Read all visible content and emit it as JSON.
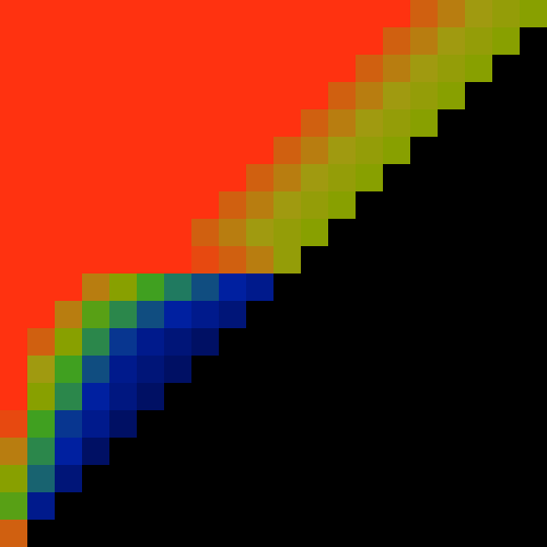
{
  "chart_data": {
    "type": "heatmap",
    "x": [
      15,
      45,
      75,
      105,
      135,
      165,
      195,
      225,
      255,
      285,
      315,
      345,
      375,
      405,
      435,
      465,
      495,
      525,
      555,
      585
    ],
    "y": [
      15,
      45,
      75,
      105,
      135,
      165,
      195,
      225,
      255,
      285,
      315,
      345,
      375,
      405,
      435,
      465,
      495,
      525,
      555,
      585
    ],
    "cells": [
      [
        0.9,
        null,
        null,
        null,
        null,
        null,
        null,
        null,
        null,
        null,
        null,
        null,
        null,
        null,
        null,
        null,
        null,
        null,
        null,
        null
      ],
      [
        0.6,
        0.15,
        null,
        null,
        null,
        null,
        null,
        null,
        null,
        null,
        null,
        null,
        null,
        null,
        null,
        null,
        null,
        null,
        null,
        null
      ],
      [
        0.7,
        0.35,
        0.1,
        null,
        null,
        null,
        null,
        null,
        null,
        null,
        null,
        null,
        null,
        null,
        null,
        null,
        null,
        null,
        null,
        null
      ],
      [
        0.85,
        0.45,
        0.2,
        0.05,
        null,
        null,
        null,
        null,
        null,
        null,
        null,
        null,
        null,
        null,
        null,
        null,
        null,
        null,
        null,
        null
      ],
      [
        0.95,
        0.55,
        0.25,
        0.15,
        0.05,
        null,
        null,
        null,
        null,
        null,
        null,
        null,
        null,
        null,
        null,
        null,
        null,
        null,
        null,
        null
      ],
      [
        1,
        0.7,
        0.45,
        0.2,
        0.12,
        0.05,
        null,
        null,
        null,
        null,
        null,
        null,
        null,
        null,
        null,
        null,
        null,
        null,
        null,
        null
      ],
      [
        1,
        0.8,
        0.55,
        0.3,
        0.15,
        0.1,
        0.05,
        null,
        null,
        null,
        null,
        null,
        null,
        null,
        null,
        null,
        null,
        null,
        null,
        null
      ],
      [
        1,
        0.9,
        0.7,
        0.45,
        0.25,
        0.15,
        0.1,
        0.05,
        null,
        null,
        null,
        null,
        null,
        null,
        null,
        null,
        null,
        null,
        null,
        null
      ],
      [
        1,
        1,
        0.85,
        0.6,
        0.45,
        0.3,
        0.2,
        0.15,
        0.1,
        null,
        null,
        null,
        null,
        null,
        null,
        null,
        null,
        null,
        null,
        null
      ],
      [
        1,
        1,
        1,
        0.85,
        0.7,
        0.55,
        0.4,
        0.3,
        0.2,
        0.15,
        null,
        null,
        null,
        null,
        null,
        null,
        null,
        null,
        null,
        null
      ],
      [
        1,
        1,
        1,
        1,
        1,
        1,
        1,
        0.95,
        0.9,
        0.85,
        0.75,
        null,
        null,
        null,
        null,
        null,
        null,
        null,
        null,
        null
      ],
      [
        1,
        1,
        1,
        1,
        1,
        1,
        1,
        0.9,
        0.85,
        0.8,
        0.75,
        0.7,
        null,
        null,
        null,
        null,
        null,
        null,
        null,
        null
      ],
      [
        1,
        1,
        1,
        1,
        1,
        1,
        1,
        1,
        0.9,
        0.85,
        0.8,
        0.75,
        0.7,
        null,
        null,
        null,
        null,
        null,
        null,
        null
      ],
      [
        1,
        1,
        1,
        1,
        1,
        1,
        1,
        1,
        1,
        0.9,
        0.85,
        0.8,
        0.75,
        0.7,
        null,
        null,
        null,
        null,
        null,
        null
      ],
      [
        1,
        1,
        1,
        1,
        1,
        1,
        1,
        1,
        1,
        1,
        0.9,
        0.85,
        0.8,
        0.75,
        0.7,
        null,
        null,
        null,
        null,
        null
      ],
      [
        1,
        1,
        1,
        1,
        1,
        1,
        1,
        1,
        1,
        1,
        1,
        0.9,
        0.85,
        0.8,
        0.75,
        0.7,
        null,
        null,
        null,
        null
      ],
      [
        1,
        1,
        1,
        1,
        1,
        1,
        1,
        1,
        1,
        1,
        1,
        1,
        0.9,
        0.85,
        0.8,
        0.75,
        0.7,
        null,
        null,
        null
      ],
      [
        1,
        1,
        1,
        1,
        1,
        1,
        1,
        1,
        1,
        1,
        1,
        1,
        1,
        0.9,
        0.85,
        0.8,
        0.75,
        0.7,
        null,
        null
      ],
      [
        1,
        1,
        1,
        1,
        1,
        1,
        1,
        1,
        1,
        1,
        1,
        1,
        1,
        1,
        0.9,
        0.85,
        0.8,
        0.75,
        0.7,
        null
      ],
      [
        1,
        1,
        1,
        1,
        1,
        1,
        1,
        1,
        1,
        1,
        1,
        1,
        1,
        1,
        1,
        0.9,
        0.85,
        0.8,
        0.75,
        0.7
      ]
    ],
    "zlim": [
      0,
      1
    ],
    "xlim": [
      0,
      600
    ],
    "ylim": [
      0,
      600
    ],
    "tick_labels": false,
    "grid": false
  }
}
